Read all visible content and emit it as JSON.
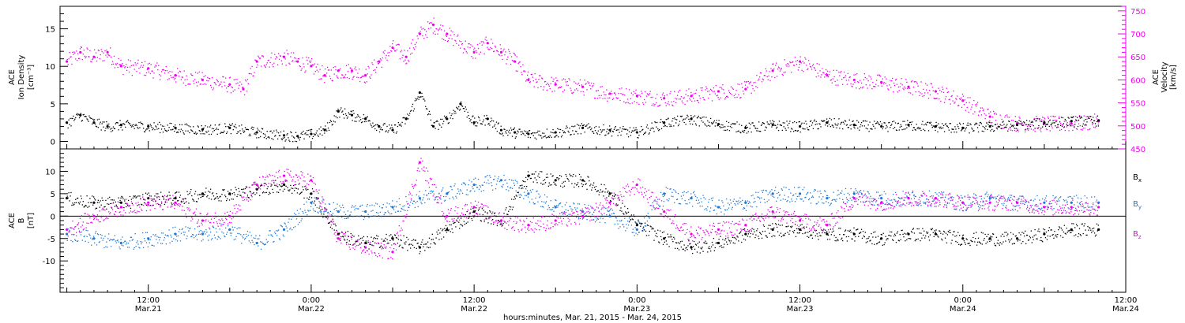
{
  "figure": {
    "xlabel": "hours:minutes, Mar. 21, 2015 - Mar. 24, 2015"
  },
  "colors": {
    "black": "#000000",
    "magenta": "#ee00ee",
    "blue": "#1f78d1"
  },
  "chart_data": [
    {
      "type": "scatter",
      "panel": "top",
      "ylabel_lines": [
        "ACE",
        "Ion Density",
        "[cm⁻³]"
      ],
      "ylim": [
        -1,
        18
      ],
      "yticks": [
        0,
        5,
        10,
        15
      ],
      "y2label_lines": [
        "ACE",
        "Velocity",
        "[km/s]"
      ],
      "y2lim": [
        450,
        760
      ],
      "y2ticks": [
        450,
        500,
        550,
        600,
        650,
        700,
        750
      ],
      "x_unit": "hours since Mar. 21, 2015 00:00",
      "xlim": [
        5.5,
        84
      ],
      "x_tick_labels": [
        {
          "time": "12:00",
          "date": "Mar.21"
        },
        {
          "time": "0:00",
          "date": "Mar.22"
        },
        {
          "time": "12:00",
          "date": "Mar.22"
        },
        {
          "time": "0:00",
          "date": "Mar.23"
        },
        {
          "time": "12:00",
          "date": "Mar.23"
        },
        {
          "time": "0:00",
          "date": "Mar.24"
        },
        {
          "time": "12:00",
          "date": "Mar.24"
        }
      ],
      "x_ticks": [
        12,
        24,
        36,
        48,
        60,
        72,
        84
      ],
      "series": [
        {
          "name": "Ion Density",
          "axis": "left",
          "color": "#000000",
          "x": [
            6,
            7,
            8,
            9,
            10,
            12,
            14,
            16,
            18,
            20,
            22,
            23,
            24,
            25,
            26,
            27,
            28,
            29,
            30,
            31,
            32,
            33,
            34,
            35,
            36,
            37,
            38,
            39,
            40,
            42,
            44,
            46,
            48,
            50,
            52,
            54,
            56,
            58,
            60,
            62,
            64,
            66,
            68,
            70,
            72,
            74,
            76,
            78,
            80,
            82
          ],
          "y": [
            2.5,
            3.5,
            2.5,
            2.0,
            2.2,
            2.0,
            1.8,
            1.6,
            1.8,
            1.2,
            0.8,
            0.7,
            1.0,
            1.5,
            4.0,
            3.5,
            3.0,
            2.0,
            1.5,
            3.0,
            6.5,
            2.0,
            3.0,
            5.0,
            2.5,
            3.0,
            1.5,
            1.2,
            1.0,
            1.2,
            1.8,
            1.5,
            1.2,
            2.5,
            3.0,
            2.3,
            1.8,
            2.2,
            2.0,
            2.5,
            2.2,
            2.0,
            2.2,
            2.0,
            1.8,
            2.0,
            2.2,
            2.5,
            2.7,
            2.8
          ]
        },
        {
          "name": "Velocity",
          "axis": "right",
          "color": "#ee00ee",
          "x": [
            6,
            7,
            8,
            9,
            10,
            12,
            14,
            16,
            18,
            19,
            20,
            22,
            23,
            24,
            25,
            26,
            27,
            28,
            29,
            30,
            31,
            32,
            33,
            34,
            36,
            37,
            38,
            39,
            40,
            42,
            44,
            46,
            48,
            50,
            52,
            54,
            56,
            58,
            60,
            62,
            64,
            66,
            68,
            70,
            72,
            74,
            76,
            78,
            80,
            82
          ],
          "y": [
            640,
            660,
            650,
            660,
            630,
            625,
            610,
            600,
            590,
            580,
            640,
            650,
            640,
            630,
            610,
            620,
            620,
            610,
            640,
            670,
            650,
            700,
            720,
            700,
            660,
            680,
            660,
            640,
            600,
            590,
            585,
            570,
            565,
            560,
            565,
            575,
            580,
            620,
            640,
            610,
            600,
            595,
            585,
            575,
            555,
            520,
            505,
            505,
            505,
            510
          ]
        }
      ]
    },
    {
      "type": "scatter",
      "panel": "bottom",
      "ylabel_lines": [
        "ACE",
        "B",
        "[nT]"
      ],
      "ylim": [
        -17,
        15
      ],
      "yticks": [
        -10,
        -5,
        0,
        5,
        10
      ],
      "zero_line": true,
      "xlim": [
        5.5,
        84
      ],
      "legend": {
        "placement": "right",
        "entries": [
          "Bx",
          "By",
          "Bz"
        ]
      },
      "series": [
        {
          "name": "Bx",
          "color": "#000000",
          "x": [
            6,
            8,
            10,
            12,
            14,
            16,
            18,
            20,
            22,
            24,
            26,
            28,
            30,
            32,
            34,
            36,
            38,
            40,
            42,
            44,
            46,
            48,
            50,
            52,
            54,
            56,
            58,
            60,
            62,
            64,
            66,
            68,
            70,
            72,
            74,
            76,
            78,
            80,
            82
          ],
          "y": [
            4,
            3,
            3,
            4,
            4,
            5,
            5,
            6,
            7,
            5,
            -4,
            -6,
            -5,
            -7,
            -3,
            1,
            -1,
            9,
            8,
            8,
            5,
            -2,
            -5,
            -7,
            -6,
            -4,
            -3,
            -3,
            -4,
            -4,
            -5,
            -4,
            -4,
            -5,
            -5,
            -5,
            -4,
            -3,
            -3
          ]
        },
        {
          "name": "By",
          "color": "#1f78d1",
          "x": [
            6,
            8,
            10,
            12,
            14,
            16,
            18,
            20,
            22,
            24,
            26,
            28,
            30,
            32,
            34,
            36,
            38,
            40,
            42,
            44,
            46,
            48,
            50,
            52,
            54,
            56,
            58,
            60,
            62,
            64,
            66,
            68,
            70,
            72,
            74,
            76,
            78,
            80,
            82
          ],
          "y": [
            -4,
            -5,
            -6,
            -5,
            -4,
            -4,
            -3,
            -6,
            -3,
            3,
            1,
            1,
            2,
            4,
            5,
            7,
            8,
            5,
            2,
            1,
            0,
            -3,
            5,
            4,
            2,
            3,
            5,
            5,
            4,
            5,
            4,
            4,
            4,
            3,
            4,
            3,
            3,
            3,
            3
          ]
        },
        {
          "name": "Bz",
          "color": "#ee00ee",
          "x": [
            6,
            8,
            10,
            12,
            14,
            16,
            18,
            20,
            22,
            24,
            26,
            28,
            30,
            32,
            34,
            36,
            38,
            40,
            42,
            44,
            46,
            48,
            50,
            52,
            54,
            56,
            58,
            60,
            62,
            64,
            66,
            68,
            70,
            72,
            74,
            76,
            78,
            80,
            82
          ],
          "y": [
            -3,
            0,
            2,
            3,
            3,
            -1,
            0,
            7,
            9,
            8,
            -5,
            -7,
            -8,
            12,
            0,
            2,
            -1,
            -2,
            -1,
            0,
            3,
            7,
            1,
            -4,
            -3,
            -2,
            1,
            -1,
            -2,
            4,
            3,
            4,
            4,
            3,
            3,
            3,
            2,
            2,
            2
          ]
        }
      ]
    }
  ]
}
